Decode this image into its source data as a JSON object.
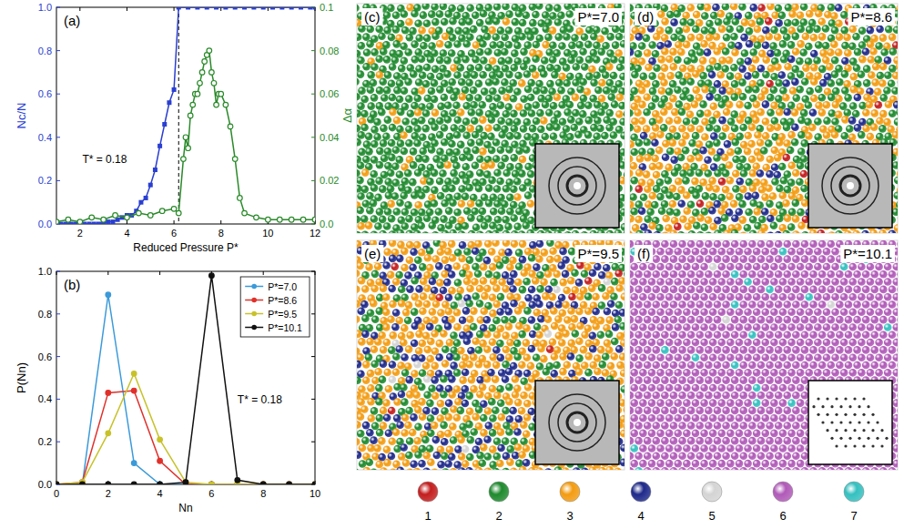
{
  "chart_data": [
    {
      "type": "line",
      "label": "(a)",
      "xlabel": "Reduced Pressure P*",
      "ylabel": "Nc/N",
      "y2label": "Δα",
      "annotation": "T* = 0.18",
      "xlim": [
        1,
        12
      ],
      "xticks": [
        2,
        4,
        6,
        8,
        10,
        12
      ],
      "ylim": [
        0,
        1
      ],
      "yticks": [
        {
          "value": 0,
          "label": "0.0"
        },
        0.2,
        0.4,
        0.6,
        0.8,
        {
          "value": 1,
          "label": "1.0"
        }
      ],
      "y2lim": [
        0,
        0.1
      ],
      "y2ticks": [
        {
          "value": 0,
          "label": "0.0"
        },
        0.02,
        0.04,
        0.06,
        0.08,
        0.1
      ],
      "vlines": [
        6.2
      ],
      "series": [
        {
          "color": "#2a3fd1",
          "marker": "square",
          "x": [
            1.0,
            1.2,
            1.4,
            1.6,
            1.8,
            2.0,
            2.2,
            2.4,
            2.6,
            2.8,
            3.0,
            3.2,
            3.4,
            3.6,
            3.8,
            4.0,
            4.2,
            4.4,
            4.6,
            4.8,
            5.0,
            5.2,
            5.4,
            5.6,
            5.8,
            6.0,
            6.2,
            6.6,
            7.0,
            7.4,
            7.8,
            8.2,
            8.6,
            9.0,
            9.4,
            9.8,
            10.2,
            10.6,
            11.0,
            11.4,
            11.8,
            12.0
          ],
          "values": [
            0,
            0,
            0,
            0,
            0,
            0,
            0,
            0,
            0,
            0,
            0.005,
            0.01,
            0.01,
            0.02,
            0.03,
            0.04,
            0.04,
            0.06,
            0.1,
            0.12,
            0.18,
            0.25,
            0.36,
            0.46,
            0.56,
            0.62,
            1,
            1,
            1,
            1,
            1,
            1,
            1,
            1,
            1,
            1,
            1,
            1,
            1,
            1,
            1,
            1
          ]
        },
        {
          "color": "#2a8a2a",
          "marker": "circle",
          "axis": "y2",
          "x": [
            1.0,
            1.5,
            2.0,
            2.5,
            3.0,
            3.5,
            4.0,
            4.5,
            5.0,
            5.5,
            6.0,
            6.2,
            6.4,
            6.5,
            6.6,
            6.7,
            6.8,
            6.9,
            7.0,
            7.1,
            7.2,
            7.3,
            7.4,
            7.5,
            7.6,
            7.7,
            7.8,
            7.9,
            8.0,
            8.2,
            8.4,
            8.6,
            8.8,
            9.0,
            9.5,
            10.0,
            10.5,
            11.0,
            11.5,
            12.0
          ],
          "values": [
            0.001,
            0.002,
            0.001,
            0.003,
            0.002,
            0.004,
            0.003,
            0.005,
            0.004,
            0.006,
            0.007,
            0.005,
            0.03,
            0.04,
            0.035,
            0.05,
            0.055,
            0.06,
            0.06,
            0.065,
            0.07,
            0.075,
            0.078,
            0.08,
            0.07,
            0.065,
            0.055,
            0.06,
            0.06,
            0.055,
            0.045,
            0.03,
            0.012,
            0.005,
            0.003,
            0.002,
            0.002,
            0.002,
            0.002,
            0.002
          ]
        }
      ]
    },
    {
      "type": "line",
      "label": "(b)",
      "xlabel": "Nn",
      "ylabel": "P(Nn)",
      "annotation": "T* = 0.18",
      "xlim": [
        0,
        10
      ],
      "xticks": [
        0,
        2,
        4,
        6,
        8,
        10
      ],
      "ylim": [
        0,
        1
      ],
      "yticks": [
        {
          "value": 0,
          "label": "0.0"
        },
        0.2,
        0.4,
        0.6,
        0.8,
        {
          "value": 1,
          "label": "1.0"
        }
      ],
      "legend": "upper right",
      "x": [
        0,
        1,
        2,
        3,
        4,
        5,
        6,
        7,
        8,
        9,
        10
      ],
      "series": [
        {
          "name": "P*=7.0",
          "color": "#3b9ad9",
          "marker": "circle",
          "values": [
            0,
            0,
            0.89,
            0.1,
            0,
            0,
            0,
            0,
            0,
            0,
            0
          ]
        },
        {
          "name": "P*=8.6",
          "color": "#e0302a",
          "marker": "circle",
          "values": [
            0,
            0.01,
            0.43,
            0.44,
            0.11,
            0,
            0,
            0,
            0,
            0,
            0
          ]
        },
        {
          "name": "P*=9.5",
          "color": "#c8c22a",
          "marker": "circle",
          "values": [
            0,
            0.01,
            0.24,
            0.52,
            0.21,
            0.01,
            0,
            0,
            0,
            0,
            0
          ]
        },
        {
          "name": "P*=10.1",
          "color": "#111111",
          "marker": "circle",
          "values": [
            0,
            0,
            0,
            0,
            0,
            0.01,
            0.98,
            0.02,
            0,
            0,
            0
          ]
        }
      ]
    }
  ],
  "snapshots": [
    {
      "label": "(c)",
      "title": "P*=7.0"
    },
    {
      "label": "(d)",
      "title": "P*=8.6"
    },
    {
      "label": "(e)",
      "title": "P*=9.5"
    },
    {
      "label": "(f)",
      "title": "P*=10.1"
    }
  ],
  "color_key": [
    {
      "label": "1",
      "color": "#c41e1e"
    },
    {
      "label": "2",
      "color": "#1f8a2e"
    },
    {
      "label": "3",
      "color": "#f39c12"
    },
    {
      "label": "4",
      "color": "#1f2a8a"
    },
    {
      "label": "5",
      "color": "#d4d4d4"
    },
    {
      "label": "6",
      "color": "#b05ab8"
    },
    {
      "label": "7",
      "color": "#35c0c0"
    }
  ]
}
